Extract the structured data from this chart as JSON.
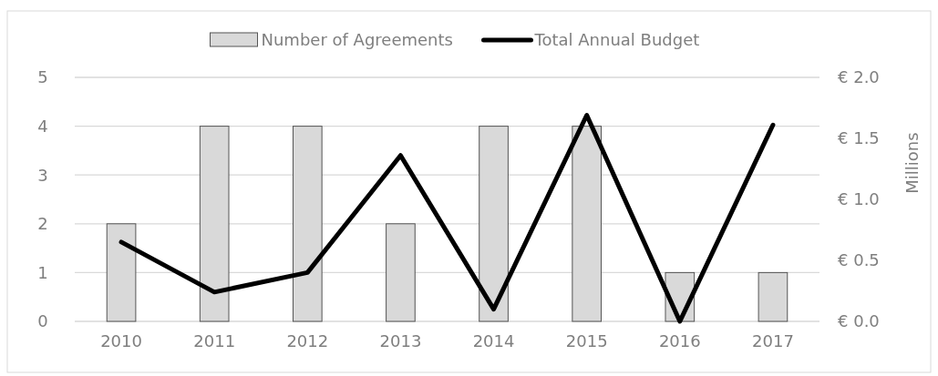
{
  "chart_data": {
    "type": "bar",
    "categories": [
      "2010",
      "2011",
      "2012",
      "2013",
      "2014",
      "2015",
      "2016",
      "2017"
    ],
    "series": [
      {
        "name": "Number of Agreements",
        "color": "#d9d9d9",
        "values": [
          2,
          4,
          4,
          2,
          4,
          4,
          1,
          1
        ]
      },
      {
        "name": "Total Annual Budget",
        "type": "line",
        "axis": "y2",
        "color": "#000000",
        "values": [
          0.65,
          0.24,
          0.4,
          1.36,
          0.1,
          1.69,
          0,
          1.61
        ]
      }
    ],
    "ylim": [
      0,
      5
    ],
    "yticks": [
      0,
      1,
      2,
      3,
      4,
      5
    ],
    "y2lim": [
      0,
      2
    ],
    "y2ticks": [
      {
        "value": 0,
        "label": "€ 0.0"
      },
      {
        "value": 0.5,
        "label": "€ 0.5"
      },
      {
        "value": 1,
        "label": "€ 1.0"
      },
      {
        "value": 1.5,
        "label": "€ 1.5"
      },
      {
        "value": 2,
        "label": "€ 2.0"
      }
    ],
    "y2label": "Millions",
    "grid": "y",
    "legend": "top",
    "marker": "none",
    "line_style": "solid"
  }
}
